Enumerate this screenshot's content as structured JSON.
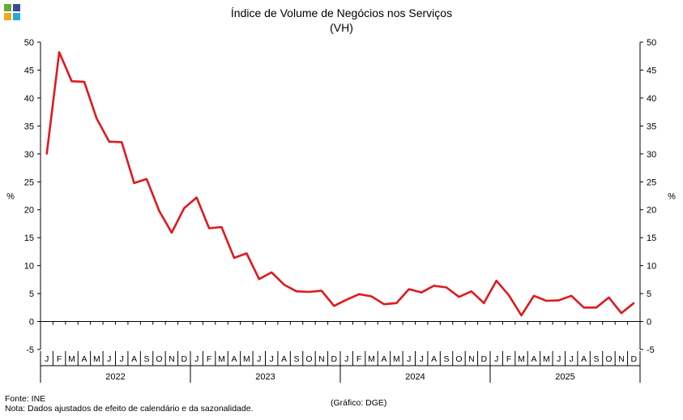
{
  "title": "Índice de Volume de Negócios nos Serviços",
  "subtitle": "(VH)",
  "footer": {
    "source": "Fonte: INE",
    "note": "Nota: Dados ajustados de efeito de calendário e da sazonalidade.",
    "credit": "(Gráfico: DGE)"
  },
  "logo_colors": [
    "#6aaa35",
    "#3a4a9a",
    "#f0a81e",
    "#2aa6de"
  ],
  "chart_data": {
    "type": "line",
    "title": "Índice de Volume de Negócios nos Serviços",
    "subtitle": "(VH)",
    "ylabel_left": "%",
    "ylabel_right": "%",
    "ylim": [
      -5,
      50
    ],
    "yticks": [
      -5,
      0,
      5,
      10,
      15,
      20,
      25,
      30,
      35,
      40,
      45,
      50
    ],
    "grid": false,
    "month_labels": [
      "J",
      "F",
      "M",
      "A",
      "M",
      "J",
      "J",
      "A",
      "S",
      "O",
      "N",
      "D",
      "J",
      "F",
      "M",
      "A",
      "M",
      "J",
      "J",
      "A",
      "S",
      "O",
      "N",
      "D",
      "J",
      "F",
      "M",
      "A",
      "M",
      "J",
      "J",
      "A",
      "S",
      "O",
      "N",
      "D",
      "J",
      "F",
      "M",
      "A",
      "M",
      "J",
      "J",
      "A",
      "S",
      "O",
      "N",
      "D"
    ],
    "year_labels": [
      "2022",
      "2023",
      "2024",
      "2025"
    ],
    "series_color": "#e0191c",
    "values": [
      30.0,
      48.2,
      43.0,
      42.9,
      36.3,
      32.2,
      32.1,
      24.8,
      25.5,
      19.8,
      15.9,
      20.3,
      22.2,
      16.7,
      16.9,
      11.4,
      12.2,
      7.6,
      8.8,
      6.6,
      5.4,
      5.3,
      5.5,
      2.8,
      3.9,
      4.9,
      4.5,
      3.1,
      3.3,
      5.8,
      5.2,
      6.4,
      6.1,
      4.4,
      5.4,
      3.3,
      7.3,
      4.7,
      1.1,
      4.6,
      3.7,
      3.8,
      4.6,
      2.5,
      2.5,
      4.3,
      1.5,
      3.3
    ]
  }
}
